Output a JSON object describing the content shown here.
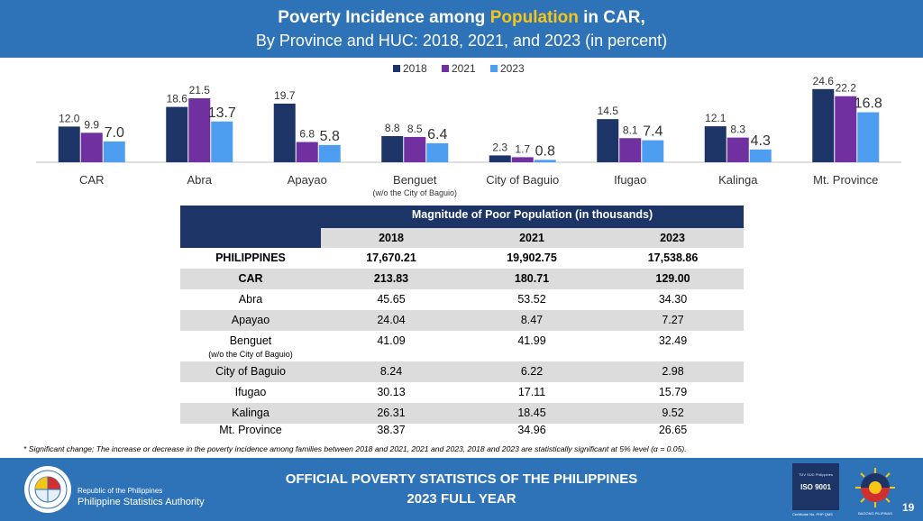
{
  "header": {
    "title_prefix": "Poverty Incidence among ",
    "title_highlight": "Population",
    "title_suffix": " in CAR,",
    "subtitle": "By Province and HUC: 2018, 2021, and 2023 (in percent)"
  },
  "colors": {
    "header_bg": "#2e72b8",
    "highlight": "#f5c518",
    "series_2018": "#1c3566",
    "series_2021": "#7030a0",
    "series_2023": "#4d9df0"
  },
  "chart_data": {
    "type": "bar",
    "categories": [
      "CAR",
      "Abra",
      "Apayao",
      "Benguet",
      "City of Baguio",
      "Ifugao",
      "Kalinga",
      "Mt. Province"
    ],
    "category_notes": [
      "",
      "",
      "",
      "(w/o the City of Baguio)",
      "",
      "",
      "",
      ""
    ],
    "series": [
      {
        "name": "2018",
        "values": [
          12.0,
          18.6,
          19.7,
          8.8,
          2.3,
          14.5,
          12.1,
          24.6
        ],
        "labels": [
          "12.0",
          "18.6",
          "19.7",
          "8.8",
          "2.3",
          "14.5",
          "12.1",
          "24.6"
        ]
      },
      {
        "name": "2021",
        "values": [
          9.9,
          21.5,
          6.8,
          8.5,
          1.7,
          8.1,
          8.3,
          22.2
        ],
        "labels": [
          "9.9",
          "21.5",
          "6.8",
          "8.5",
          "1.7",
          "8.1",
          "8.3",
          "22.2"
        ]
      },
      {
        "name": "2023",
        "values": [
          7.0,
          13.7,
          5.8,
          6.4,
          0.8,
          7.4,
          4.3,
          16.8
        ],
        "labels": [
          "7.0",
          "13.7",
          "5.8",
          "6.4",
          "0.8",
          "7.4",
          "4.3",
          "16.8"
        ]
      }
    ],
    "legend_position": "top",
    "grid": false
  },
  "table": {
    "title": "Magnitude of Poor Population (in thousands)",
    "years": [
      "2018",
      "2021",
      "2023"
    ],
    "rows": [
      {
        "name": "PHILIPPINES",
        "v2018": "17,670.21",
        "v2021": "19,902.75",
        "v2023": "17,538.86"
      },
      {
        "name": "CAR",
        "v2018": "213.83",
        "v2021": "180.71",
        "v2023": "129.00"
      },
      {
        "name": "Abra",
        "v2018": "45.65",
        "v2021": "53.52",
        "v2023": "34.30"
      },
      {
        "name": "Apayao",
        "v2018": "24.04",
        "v2021": "8.47",
        "v2023": "7.27"
      },
      {
        "name": "Benguet",
        "note": "(w/o the City of Baguio)",
        "v2018": "41.09",
        "v2021": "41.99",
        "v2023": "32.49"
      },
      {
        "name": "City of Baguio",
        "v2018": "8.24",
        "v2021": "6.22",
        "v2023": "2.98"
      },
      {
        "name": "Ifugao",
        "v2018": "30.13",
        "v2021": "17.11",
        "v2023": "15.79"
      },
      {
        "name": "Kalinga",
        "v2018": "26.31",
        "v2021": "18.45",
        "v2023": "9.52"
      },
      {
        "name": "Mt. Province",
        "v2018": "38.37",
        "v2021": "34.96",
        "v2023": "26.65"
      }
    ]
  },
  "note": "* Significant change; The increase or decrease in the poverty incidence among families between 2018 and 2021, 2021 and 2023, 2018 and 2023 are statistically significant at 5% level (α = 0.05).",
  "footer": {
    "republic": "Republic of the Philippines",
    "agency": "Philippine Statistics Authority",
    "title_line1": "OFFICIAL POVERTY STATISTICS OF THE PHILIPPINES",
    "title_line2": "2023 FULL YEAR",
    "iso_top": "TÜV SÜD Philippines",
    "iso_label": "ISO 9001",
    "cert": "Certificate No. PHP QMS",
    "bagong": "BAGONG PILIPINAS",
    "page_number": "19"
  }
}
